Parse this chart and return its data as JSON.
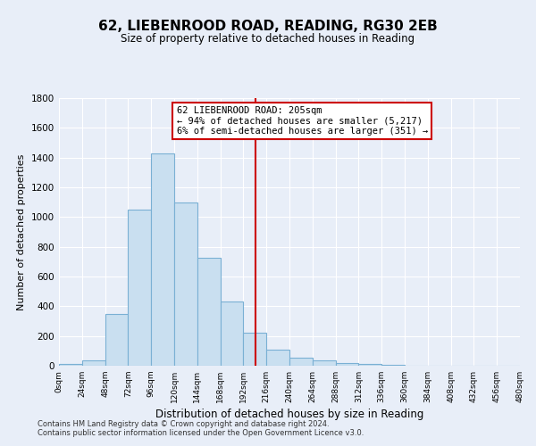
{
  "title": "62, LIEBENROOD ROAD, READING, RG30 2EB",
  "subtitle": "Size of property relative to detached houses in Reading",
  "xlabel": "Distribution of detached houses by size in Reading",
  "ylabel": "Number of detached properties",
  "bin_edges": [
    0,
    24,
    48,
    72,
    96,
    120,
    144,
    168,
    192,
    216,
    240,
    264,
    288,
    312,
    336,
    360,
    384,
    408,
    432,
    456,
    480
  ],
  "bar_heights": [
    10,
    35,
    350,
    1050,
    1430,
    1100,
    725,
    430,
    220,
    110,
    55,
    35,
    20,
    15,
    5,
    3,
    2,
    1,
    1,
    0
  ],
  "bar_color": "#c9dff0",
  "bar_edge_color": "#7ab0d4",
  "property_line_x": 205,
  "property_line_color": "#cc0000",
  "annotation_title": "62 LIEBENROOD ROAD: 205sqm",
  "annotation_line1": "← 94% of detached houses are smaller (5,217)",
  "annotation_line2": "6% of semi-detached houses are larger (351) →",
  "annotation_box_color": "#cc0000",
  "ylim": [
    0,
    1800
  ],
  "yticks": [
    0,
    200,
    400,
    600,
    800,
    1000,
    1200,
    1400,
    1600,
    1800
  ],
  "xtick_labels": [
    "0sqm",
    "24sqm",
    "48sqm",
    "72sqm",
    "96sqm",
    "120sqm",
    "144sqm",
    "168sqm",
    "192sqm",
    "216sqm",
    "240sqm",
    "264sqm",
    "288sqm",
    "312sqm",
    "336sqm",
    "360sqm",
    "384sqm",
    "408sqm",
    "432sqm",
    "456sqm",
    "480sqm"
  ],
  "footer1": "Contains HM Land Registry data © Crown copyright and database right 2024.",
  "footer2": "Contains public sector information licensed under the Open Government Licence v3.0.",
  "background_color": "#e8eef8",
  "plot_bg_color": "#e8eef8"
}
